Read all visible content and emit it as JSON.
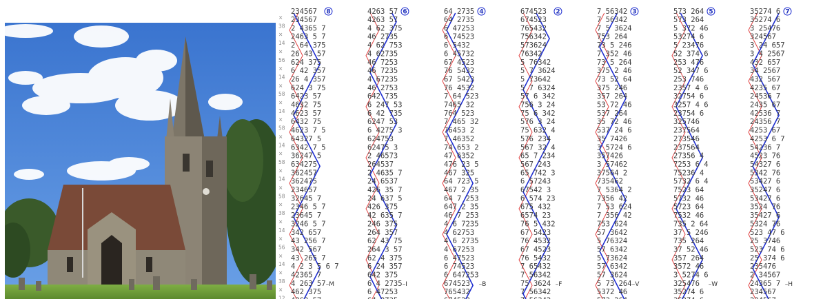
{
  "photo": {
    "subject": "church-with-spire",
    "colors": {
      "sky": "#3f7fd6",
      "cloud": "#ffffff",
      "stone": "#8a8273",
      "roof": "#7a4a38",
      "grass": "#6f9c3a",
      "tree": "#3c5e2c"
    }
  },
  "methods": {
    "colors": {
      "blue_line": "#1f2fd0",
      "red_line": "#e04040",
      "digits": "#3a3a3a",
      "marks": "#8a8a8a"
    },
    "left_marks": [
      "×",
      "38",
      "×",
      "14",
      "×",
      "56",
      "×",
      "14",
      "×",
      "58",
      "×",
      "14",
      "×",
      "58",
      "×",
      "14",
      "×",
      "58",
      "×",
      "14",
      "×",
      "58",
      "×",
      "38",
      "×",
      "14",
      "×",
      "56",
      "×",
      "14",
      "×",
      "38",
      "×",
      "12"
    ],
    "columns": [
      {
        "id": "M",
        "start": "234567",
        "head_row": "234567",
        "circle": "8",
        "label": "–M",
        "rows": [
          "234567",
          "2 4365 7",
          "2463 5 7",
          "2 64 375",
          "26 43 57",
          "624 375",
          "6 42 357",
          "26 4 357",
          "624 3 75",
          "6423 57",
          "4632 75",
          "4623 57",
          "6432 75",
          "4623 7 5",
          "64327 5",
          "6342 7 5",
          "36247 5",
          "634275",
          "362457",
          "362475",
          "234657",
          "32645 7",
          "2346 5 7",
          "23645 7",
          "3246 5 7",
          "342 657",
          "43 256 7",
          "342 567",
          "43 265 7",
          "4 2 3 5 6 7",
          "42365 7",
          "4 263 57",
          "462 375",
          "4263 57"
        ]
      },
      {
        "id": "I",
        "start": "426357",
        "head_row": "4263 57",
        "circle": "6",
        "label": "–I",
        "rows": [
          "4263 57",
          "4 62 375",
          "46 2735",
          "4 62 753",
          "4 62735",
          "46 7253",
          "46 7235",
          "4 67235",
          "46 2753",
          "642 735",
          "6 247 53",
          "6 42 735",
          "6247 53",
          "6 4275 3",
          "624753",
          "62475 3",
          "2 46573",
          "264537",
          "2 4635 7",
          "24 6537",
          "426 35 7",
          "24 637 5",
          "426 375",
          "42 635 7",
          "246 375",
          "264 357",
          "62 43 75",
          "264 3 57",
          "62 4 375",
          "6 24 357",
          "642 375",
          "6 4 2735",
          "6 47253",
          "64 2735"
        ]
      },
      {
        "id": "B",
        "start": "642735",
        "head_row": "64 2735",
        "circle": "4",
        "label": "–B",
        "rows": [
          "64 2735",
          "6 47253",
          "6 74523",
          "6 5432",
          "6 45732",
          "67 4523",
          "76 5432",
          "67 5423",
          "76 4532",
          "7 64 523",
          "7465 32",
          "764 523",
          "7 465 32",
          "76453 2",
          "7 46352",
          "74 653 2",
          "47 6352",
          "476 23 5",
          "467 325",
          "64 723 5",
          "467 2 35",
          "64 7 253",
          "647 2 35",
          "46 7 253",
          "4 6 7235",
          "4 62753",
          "4 6 2735",
          "4 67253",
          "6 47523",
          "6 74523",
          "6 647253",
          "674523",
          "765432",
          "674523"
        ]
      },
      {
        "id": "F",
        "start": "674523",
        "head_row": "674523",
        "circle": "2",
        "label": "–F",
        "rows": [
          "674523",
          "765432",
          "756342",
          "573624",
          "76342",
          "5 76342",
          "5 7 3624",
          "5 73642",
          "5 7 6324",
          "57 6 342",
          "756 3 24",
          "75 6 342",
          "576 3 24",
          "75 632 4",
          "576 234",
          "567 32 4",
          "65 7 234",
          "567 243",
          "65 742 3",
          "6 57243",
          "67542 3",
          "6 574 23",
          "675 432",
          "6574 23",
          "76 5 432",
          "67 5423",
          "76 4532",
          "67 4523",
          "76 5432",
          "7 65432",
          "7 56342",
          "75 3624",
          "7 56342",
          "7 56342"
        ]
      },
      {
        "id": "V",
        "start": "756342",
        "head_row": "7 56342",
        "circle": "3",
        "label": "–V",
        "rows": [
          "7 56342",
          "7 5 3624",
          "753 264",
          "73 5 246",
          "7 352 46",
          "73 5 264",
          "375 2 46",
          "73 52 64",
          "375 246",
          "357 264",
          "53 72 46",
          "537 264",
          "35 72 46",
          "537 24 6",
          "35 7426",
          "3 5724 6",
          "357426",
          "3 57462",
          "37564 2",
          "735462",
          "7 5364 2",
          "7356 42",
          "7 53 624",
          "7 356 42",
          "753 624",
          "57 3642",
          "5 76324",
          "57 6342",
          "5 73624",
          "57 6342",
          "57 3624",
          "5 73 264",
          "5372 46",
          "573 264"
        ]
      },
      {
        "id": "W",
        "start": "573264",
        "head_row": "573 264",
        "circle": "5",
        "label": "–W",
        "rows": [
          "573 264",
          "5 372 46",
          "53274 6",
          "5 23476",
          "52 374 6",
          "253 476",
          "52 347 6",
          "253 746",
          "2357 4 6",
          "32754 6",
          "3257 4 6",
          "23754 6",
          "325746",
          "237564",
          "273546",
          "237564",
          "27356 4",
          "7253 6 4",
          "75236 4",
          "5732 6 4",
          "7523 64",
          "5732 46",
          "5723 64",
          "7532 46",
          "735 2 64",
          "37 5 246",
          "735 264",
          "37 52 46",
          "357 264",
          "3572 46",
          "3 5274 6",
          "325476",
          "35274 6",
          "35274 6"
        ]
      },
      {
        "id": "H",
        "start": "352746",
        "head_row": "35274 6",
        "circle": "7",
        "label": "–H",
        "rows": [
          "35274 6",
          "3 25476",
          "324567",
          "3 24 657",
          "3 4 2567",
          "432 657",
          "34 2567",
          "432 567",
          "4235 67",
          "24536 7",
          "2435 67",
          "42536 7",
          "24356 7",
          "4253 67",
          "4253 6 7",
          "54236 7",
          "4523 76",
          "54327 6",
          "5342 76",
          "53427 6",
          "35247 6",
          "53427 6",
          "3524 76",
          "35427 6",
          "5324 76",
          "523 47 6",
          "25 3746",
          "523 74 6",
          "25 374 6",
          "235476",
          "2 34567",
          "24365 7",
          "234567",
          "234567"
        ]
      }
    ]
  }
}
